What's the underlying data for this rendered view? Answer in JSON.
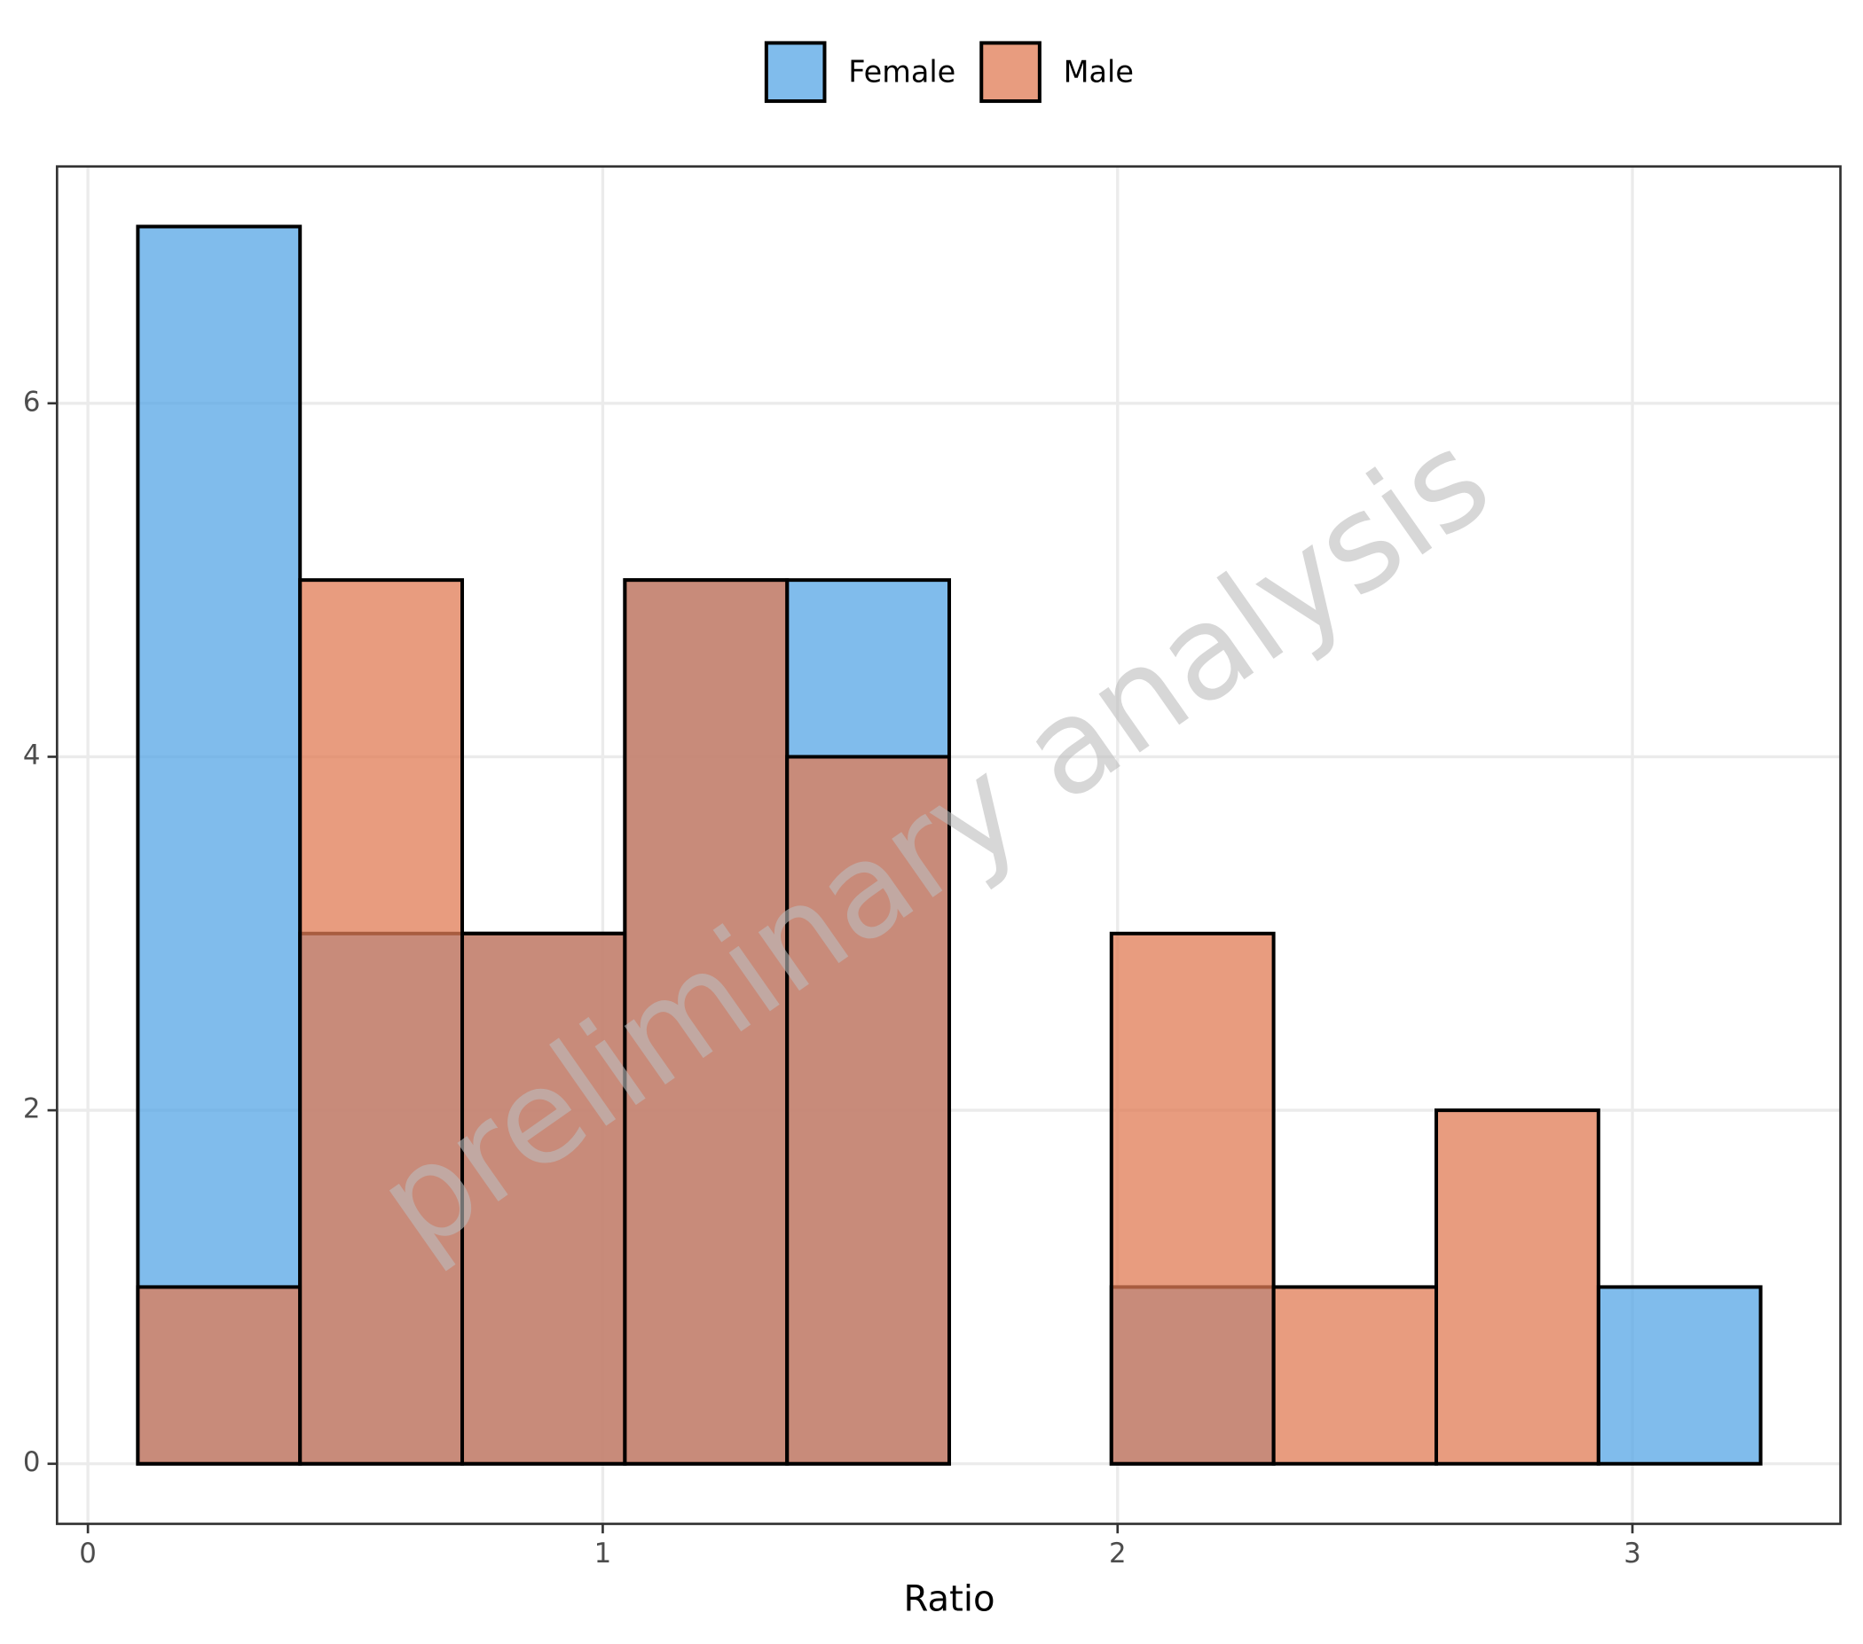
{
  "chart_data": {
    "type": "histogram",
    "x_label": "Ratio",
    "watermark": "preliminary analysis",
    "bins": [
      0.097,
      0.412,
      0.727,
      1.043,
      1.358,
      1.673,
      1.988,
      2.303,
      2.619,
      2.934,
      3.249
    ],
    "series": [
      {
        "name": "Female",
        "color": "#56A6E6",
        "values": [
          7,
          3,
          3,
          5,
          5,
          0,
          1,
          0,
          0,
          1
        ]
      },
      {
        "name": "Male",
        "color": "#E07B54",
        "values": [
          1,
          5,
          3,
          5,
          4,
          0,
          3,
          1,
          2,
          0
        ]
      }
    ],
    "xlim": [
      -0.06,
      3.404
    ],
    "xticks": [
      0,
      1,
      2,
      3
    ],
    "ylim": [
      -0.34,
      7.34
    ],
    "yticks": [
      0,
      2,
      4,
      6
    ],
    "grid": true,
    "legend": "top"
  }
}
